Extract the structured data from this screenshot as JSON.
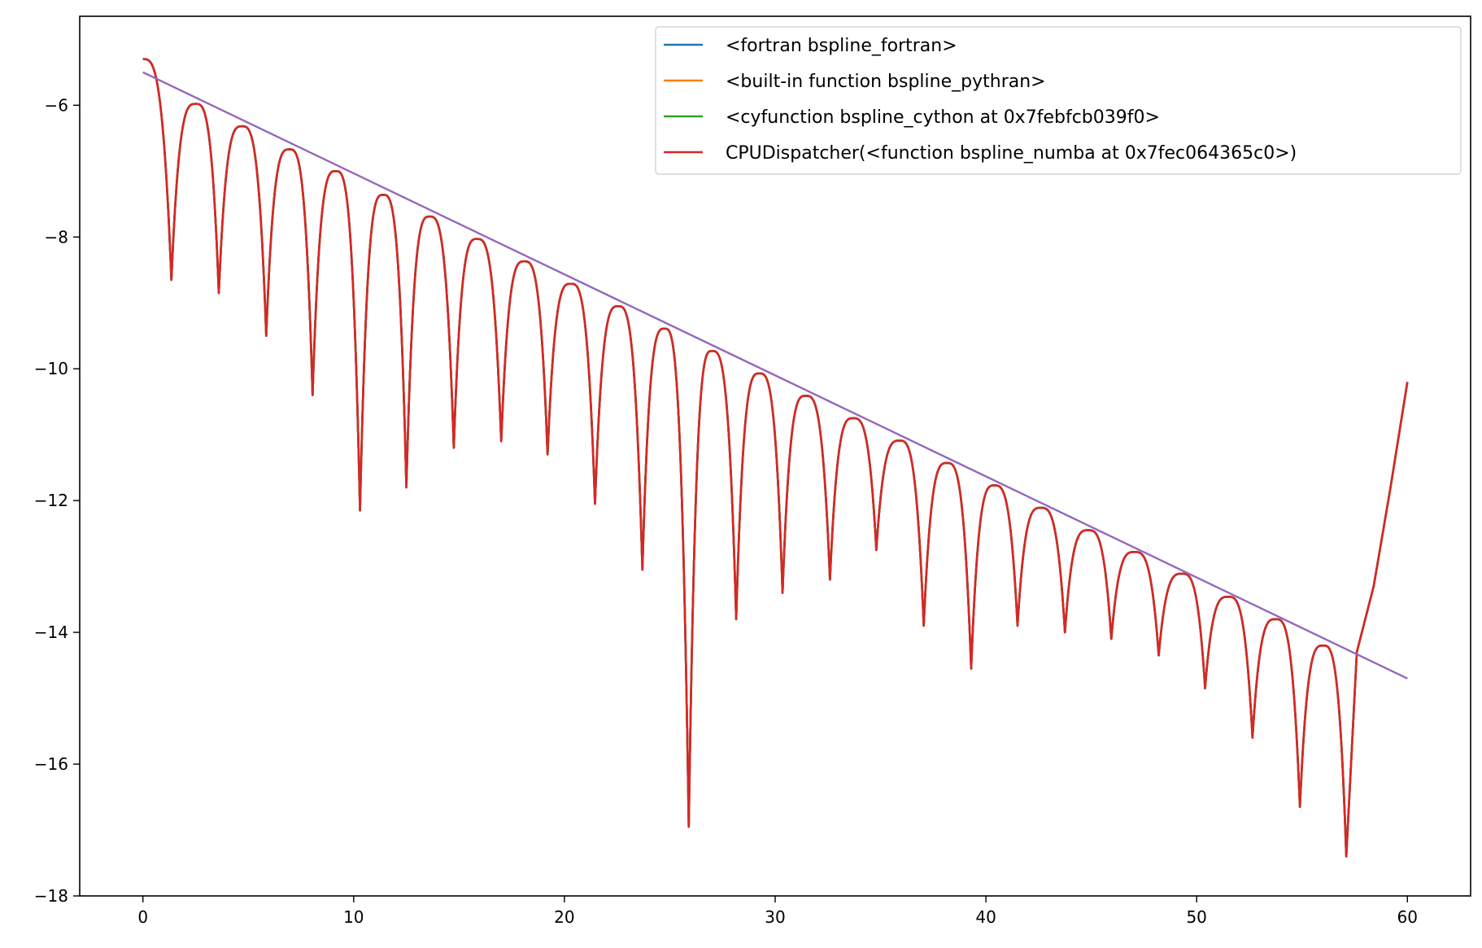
{
  "chart_data": {
    "type": "line",
    "title": "",
    "xlabel": "",
    "ylabel": "",
    "xlim": [
      -3,
      63
    ],
    "ylim": [
      -18,
      -4.65
    ],
    "x_ticks": [
      0,
      10,
      20,
      30,
      40,
      50,
      60
    ],
    "y_ticks": [
      -18,
      -16,
      -14,
      -12,
      -10,
      -8,
      -6
    ],
    "x_tick_labels": [
      "0",
      "10",
      "20",
      "30",
      "40",
      "50",
      "60"
    ],
    "y_tick_labels": [
      "−18",
      "−16",
      "−14",
      "−12",
      "−10",
      "−8",
      "−6"
    ],
    "grid": false,
    "legend_position": "top-right",
    "series": [
      {
        "name": "<fortran bspline_fortran>",
        "color": "#1f77b4",
        "values_same_as": "CPUDispatcher(<function bspline_numba at 0x7fec064365c0>)"
      },
      {
        "name": "<built-in function bspline_pythran>",
        "color": "#ff7f0e",
        "values_same_as": "CPUDispatcher(<function bspline_numba at 0x7fec064365c0>)"
      },
      {
        "name": "<cyfunction bspline_cython at 0x7febfcb039f0>",
        "color": "#2ca02c",
        "values_same_as": "CPUDispatcher(<function bspline_numba at 0x7fec064365c0>)"
      },
      {
        "name": "CPUDispatcher(<function bspline_numba at 0x7fec064365c0>)",
        "color": "#d62728",
        "minima": [
          [
            1.35,
            -8.65
          ],
          [
            3.6,
            -8.85
          ],
          [
            5.85,
            -9.5
          ],
          [
            8.05,
            -10.4
          ],
          [
            10.3,
            -12.15
          ],
          [
            12.5,
            -11.8
          ],
          [
            14.75,
            -11.2
          ],
          [
            17.0,
            -11.1
          ],
          [
            19.2,
            -11.3
          ],
          [
            21.45,
            -12.05
          ],
          [
            23.7,
            -13.05
          ],
          [
            25.9,
            -16.95
          ],
          [
            28.15,
            -13.8
          ],
          [
            30.35,
            -13.4
          ],
          [
            32.6,
            -13.2
          ],
          [
            34.8,
            -12.75
          ],
          [
            37.05,
            -13.9
          ],
          [
            39.3,
            -14.55
          ],
          [
            41.5,
            -13.9
          ],
          [
            43.75,
            -14.0
          ],
          [
            45.95,
            -14.1
          ],
          [
            48.2,
            -14.35
          ],
          [
            50.4,
            -14.85
          ],
          [
            52.65,
            -15.6
          ],
          [
            54.9,
            -16.65
          ],
          [
            57.1,
            -17.4
          ]
        ],
        "maxima": [
          [
            0.0,
            -5.3
          ],
          [
            2.5,
            -5.98
          ],
          [
            4.7,
            -6.32
          ],
          [
            6.95,
            -6.67
          ],
          [
            9.15,
            -7.0
          ],
          [
            11.4,
            -7.36
          ],
          [
            13.6,
            -7.69
          ],
          [
            15.85,
            -8.03
          ],
          [
            18.1,
            -8.37
          ],
          [
            20.3,
            -8.71
          ],
          [
            22.55,
            -9.05
          ],
          [
            24.75,
            -9.39
          ],
          [
            27.0,
            -9.73
          ],
          [
            29.25,
            -10.07
          ],
          [
            31.45,
            -10.41
          ],
          [
            33.7,
            -10.75
          ],
          [
            35.9,
            -11.09
          ],
          [
            38.15,
            -11.43
          ],
          [
            40.4,
            -11.77
          ],
          [
            42.6,
            -12.11
          ],
          [
            44.85,
            -12.45
          ],
          [
            47.05,
            -12.78
          ],
          [
            49.3,
            -13.11
          ],
          [
            51.5,
            -13.46
          ],
          [
            53.75,
            -13.8
          ],
          [
            56.0,
            -14.2
          ]
        ],
        "tail": [
          [
            57.6,
            -14.3
          ],
          [
            58.4,
            -13.3
          ],
          [
            59.2,
            -11.8
          ],
          [
            60.0,
            -10.2
          ]
        ]
      },
      {
        "name": "",
        "color": "#9467bd",
        "x": [
          0,
          60
        ],
        "values": [
          -5.5,
          -14.7
        ]
      }
    ]
  }
}
